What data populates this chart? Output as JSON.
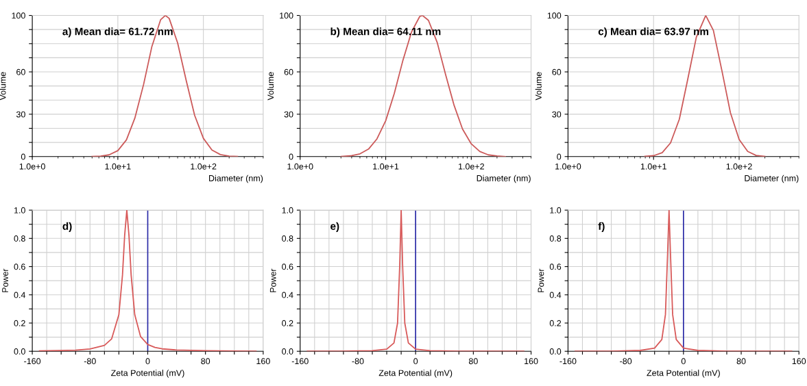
{
  "chart_data": [
    {
      "type": "line",
      "log": "x",
      "xlabel": "Diameter (nm)",
      "ylabel": "Volume",
      "annotations": [
        "a) Mean dia= 61.72 nm"
      ],
      "grid": true,
      "xlim": [
        1,
        500
      ],
      "ylim": [
        0,
        100
      ],
      "xticks": [
        {
          "value": 1,
          "label": "1.0e+0"
        },
        {
          "value": 10,
          "label": "1.0e+1"
        },
        {
          "value": 100,
          "label": "1.0e+2"
        }
      ],
      "yticks": [
        0,
        {
          "value": 10,
          "label": null
        },
        {
          "value": 20,
          "label": null
        },
        30,
        {
          "value": 40,
          "label": null
        },
        {
          "value": 50,
          "label": null
        },
        60,
        {
          "value": 70,
          "label": null
        },
        {
          "value": 80,
          "label": null
        },
        {
          "value": 90,
          "label": null
        },
        100
      ],
      "series": [
        {
          "color": "#cc5a5a",
          "x": [
            5,
            6.3,
            7.9,
            10,
            12.6,
            15.8,
            20,
            25,
            31.6,
            35.9,
            39.8,
            50,
            63,
            79,
            100,
            126,
            158,
            200,
            250
          ],
          "values": [
            0,
            0.3,
            1.2,
            4.2,
            11.8,
            27.2,
            51.1,
            78.0,
            96.9,
            100,
            97.9,
            80.5,
            53.8,
            29.2,
            12.9,
            4.6,
            1.4,
            0.3,
            0
          ]
        }
      ]
    },
    {
      "type": "line",
      "log": "x",
      "xlabel": "Diameter (nm)",
      "ylabel": "Volume",
      "annotations": [
        "b) Mean dia= 64.11 nm"
      ],
      "grid": true,
      "xlim": [
        1,
        500
      ],
      "ylim": [
        0,
        100
      ],
      "xticks": [
        {
          "value": 1,
          "label": "1.0e+0"
        },
        {
          "value": 10,
          "label": "1.0e+1"
        },
        {
          "value": 100,
          "label": "1.0e+2"
        }
      ],
      "yticks": [
        0,
        {
          "value": 10,
          "label": null
        },
        {
          "value": 20,
          "label": null
        },
        30,
        {
          "value": 40,
          "label": null
        },
        {
          "value": 50,
          "label": null
        },
        60,
        {
          "value": 70,
          "label": null
        },
        {
          "value": 80,
          "label": null
        },
        {
          "value": 90,
          "label": null
        },
        100
      ],
      "series": [
        {
          "color": "#cc5a5a",
          "x": [
            3,
            4.0,
            5.0,
            6.3,
            7.9,
            10,
            12.6,
            15.8,
            20,
            25,
            26.9,
            31.6,
            40,
            50,
            63,
            79,
            100,
            126,
            158,
            200,
            250
          ],
          "values": [
            0,
            0.6,
            1.9,
            5.3,
            12.5,
            25.4,
            44.7,
            67.6,
            88.2,
            99.3,
            100,
            96.5,
            80.8,
            58.3,
            36.3,
            19.5,
            9.0,
            3.6,
            1.2,
            0.4,
            0
          ]
        }
      ]
    },
    {
      "type": "line",
      "log": "x",
      "xlabel": "Diameter (nm)",
      "ylabel": "Volume",
      "annotations": [
        "c) Mean dia= 63.97 nm"
      ],
      "grid": true,
      "xlim": [
        1,
        500
      ],
      "ylim": [
        0,
        100
      ],
      "xticks": [
        {
          "value": 1,
          "label": "1.0e+0"
        },
        {
          "value": 10,
          "label": "1.0e+1"
        },
        {
          "value": 100,
          "label": "1.0e+2"
        }
      ],
      "yticks": [
        0,
        {
          "value": 10,
          "label": null
        },
        {
          "value": 20,
          "label": null
        },
        30,
        {
          "value": 40,
          "label": null
        },
        {
          "value": 50,
          "label": null
        },
        60,
        {
          "value": 70,
          "label": null
        },
        {
          "value": 80,
          "label": null
        },
        {
          "value": 90,
          "label": null
        },
        100
      ],
      "series": [
        {
          "color": "#cc5a5a",
          "x": [
            7.9,
            10,
            12.6,
            15.8,
            20,
            25,
            31.6,
            40.7,
            50,
            63,
            79,
            100,
            126,
            158,
            200
          ],
          "values": [
            0.1,
            0.6,
            2.7,
            9.7,
            26.4,
            54.3,
            84.6,
            100,
            89.4,
            60.7,
            31.2,
            12.1,
            3.6,
            0.8,
            0.1
          ]
        }
      ]
    },
    {
      "type": "line",
      "xlabel": "Zeta Potential (mV)",
      "ylabel": "Power",
      "annotations": [
        "d)"
      ],
      "grid": true,
      "xlim": [
        -160,
        160
      ],
      "ylim": [
        0,
        1
      ],
      "xticks": [
        -160,
        {
          "value": -140,
          "label": null
        },
        {
          "value": -120,
          "label": null
        },
        {
          "value": -100,
          "label": null
        },
        -80,
        {
          "value": -60,
          "label": null
        },
        {
          "value": -40,
          "label": null
        },
        {
          "value": -20,
          "label": null
        },
        0,
        {
          "value": 20,
          "label": null
        },
        {
          "value": 40,
          "label": null
        },
        {
          "value": 60,
          "label": null
        },
        80,
        {
          "value": 100,
          "label": null
        },
        {
          "value": 120,
          "label": null
        },
        {
          "value": 140,
          "label": null
        },
        160
      ],
      "yticks": [
        {
          "value": 0,
          "label": "0.0"
        },
        {
          "value": 0.1,
          "label": null
        },
        {
          "value": 0.2,
          "label": "0.2"
        },
        {
          "value": 0.3,
          "label": null
        },
        {
          "value": 0.4,
          "label": "0.4"
        },
        {
          "value": 0.5,
          "label": null
        },
        {
          "value": 0.6,
          "label": "0.6"
        },
        {
          "value": 0.7,
          "label": null
        },
        {
          "value": 0.8,
          "label": "0.8"
        },
        {
          "value": 0.9,
          "label": null
        },
        {
          "value": 1,
          "label": "1.0"
        }
      ],
      "ref_lines": [
        {
          "axis": "x",
          "value": 0,
          "color": "#2a2aa8"
        }
      ],
      "series": [
        {
          "color": "#d85a5a",
          "x": [
            -150,
            -120,
            -100,
            -80,
            -60,
            -50,
            -40,
            -35,
            -32,
            -29,
            -26,
            -23,
            -18,
            -10,
            0,
            10,
            20,
            40,
            80,
            120,
            150
          ],
          "values": [
            0.003,
            0.005,
            0.008,
            0.016,
            0.042,
            0.088,
            0.259,
            0.54,
            0.82,
            1.0,
            0.82,
            0.54,
            0.259,
            0.105,
            0.048,
            0.027,
            0.017,
            0.009,
            0.004,
            0.002,
            0.001
          ]
        }
      ]
    },
    {
      "type": "line",
      "xlabel": "Zeta Potential (mV)",
      "ylabel": "Power",
      "annotations": [
        "e)"
      ],
      "grid": true,
      "xlim": [
        -160,
        160
      ],
      "ylim": [
        0,
        1
      ],
      "xticks": [
        -160,
        {
          "value": -140,
          "label": null
        },
        {
          "value": -120,
          "label": null
        },
        {
          "value": -100,
          "label": null
        },
        -80,
        {
          "value": -60,
          "label": null
        },
        {
          "value": -40,
          "label": null
        },
        {
          "value": -20,
          "label": null
        },
        0,
        {
          "value": 20,
          "label": null
        },
        {
          "value": 40,
          "label": null
        },
        {
          "value": 60,
          "label": null
        },
        80,
        {
          "value": 100,
          "label": null
        },
        {
          "value": 120,
          "label": null
        },
        {
          "value": 140,
          "label": null
        },
        160
      ],
      "yticks": [
        {
          "value": 0,
          "label": "0.0"
        },
        {
          "value": 0.1,
          "label": null
        },
        {
          "value": 0.2,
          "label": "0.2"
        },
        {
          "value": 0.3,
          "label": null
        },
        {
          "value": 0.4,
          "label": "0.4"
        },
        {
          "value": 0.5,
          "label": null
        },
        {
          "value": 0.6,
          "label": "0.6"
        },
        {
          "value": 0.7,
          "label": null
        },
        {
          "value": 0.8,
          "label": "0.8"
        },
        {
          "value": 0.9,
          "label": null
        },
        {
          "value": 1,
          "label": "1.0"
        }
      ],
      "ref_lines": [
        {
          "axis": "x",
          "value": 0,
          "color": "#2a2aa8"
        }
      ],
      "series": [
        {
          "color": "#d85a5a",
          "x": [
            -150,
            -100,
            -60,
            -40,
            -30,
            -25,
            -22,
            -20,
            -18,
            -15,
            -10,
            0,
            20,
            60,
            100,
            150
          ],
          "values": [
            0,
            0.001,
            0.004,
            0.015,
            0.059,
            0.2,
            0.61,
            1.0,
            0.61,
            0.2,
            0.059,
            0.015,
            0.004,
            0.001,
            0,
            0
          ]
        }
      ]
    },
    {
      "type": "line",
      "xlabel": "Zeta Potential (mV)",
      "ylabel": "Power",
      "annotations": [
        "f)"
      ],
      "grid": true,
      "xlim": [
        -160,
        160
      ],
      "ylim": [
        0,
        1
      ],
      "xticks": [
        -160,
        {
          "value": -140,
          "label": null
        },
        {
          "value": -120,
          "label": null
        },
        {
          "value": -100,
          "label": null
        },
        -80,
        {
          "value": -60,
          "label": null
        },
        {
          "value": -40,
          "label": null
        },
        {
          "value": -20,
          "label": null
        },
        0,
        {
          "value": 20,
          "label": null
        },
        {
          "value": 40,
          "label": null
        },
        {
          "value": 60,
          "label": null
        },
        80,
        {
          "value": 100,
          "label": null
        },
        {
          "value": 120,
          "label": null
        },
        {
          "value": 140,
          "label": null
        },
        160
      ],
      "yticks": [
        {
          "value": 0,
          "label": "0.0"
        },
        {
          "value": 0.1,
          "label": null
        },
        {
          "value": 0.2,
          "label": "0.2"
        },
        {
          "value": 0.3,
          "label": null
        },
        {
          "value": 0.4,
          "label": "0.4"
        },
        {
          "value": 0.5,
          "label": null
        },
        {
          "value": 0.6,
          "label": "0.6"
        },
        {
          "value": 0.7,
          "label": null
        },
        {
          "value": 0.8,
          "label": "0.8"
        },
        {
          "value": 0.9,
          "label": null
        },
        {
          "value": 1,
          "label": "1.0"
        }
      ],
      "ref_lines": [
        {
          "axis": "x",
          "value": 0,
          "color": "#2a2aa8"
        }
      ],
      "series": [
        {
          "color": "#d85a5a",
          "x": [
            -150,
            -100,
            -60,
            -40,
            -30,
            -25,
            -22,
            -20,
            -18,
            -15,
            -10,
            0,
            20,
            60,
            100,
            150
          ],
          "values": [
            0,
            0.001,
            0.006,
            0.022,
            0.083,
            0.26,
            0.69,
            1.0,
            0.69,
            0.26,
            0.083,
            0.022,
            0.006,
            0.001,
            0,
            0
          ]
        }
      ]
    }
  ]
}
